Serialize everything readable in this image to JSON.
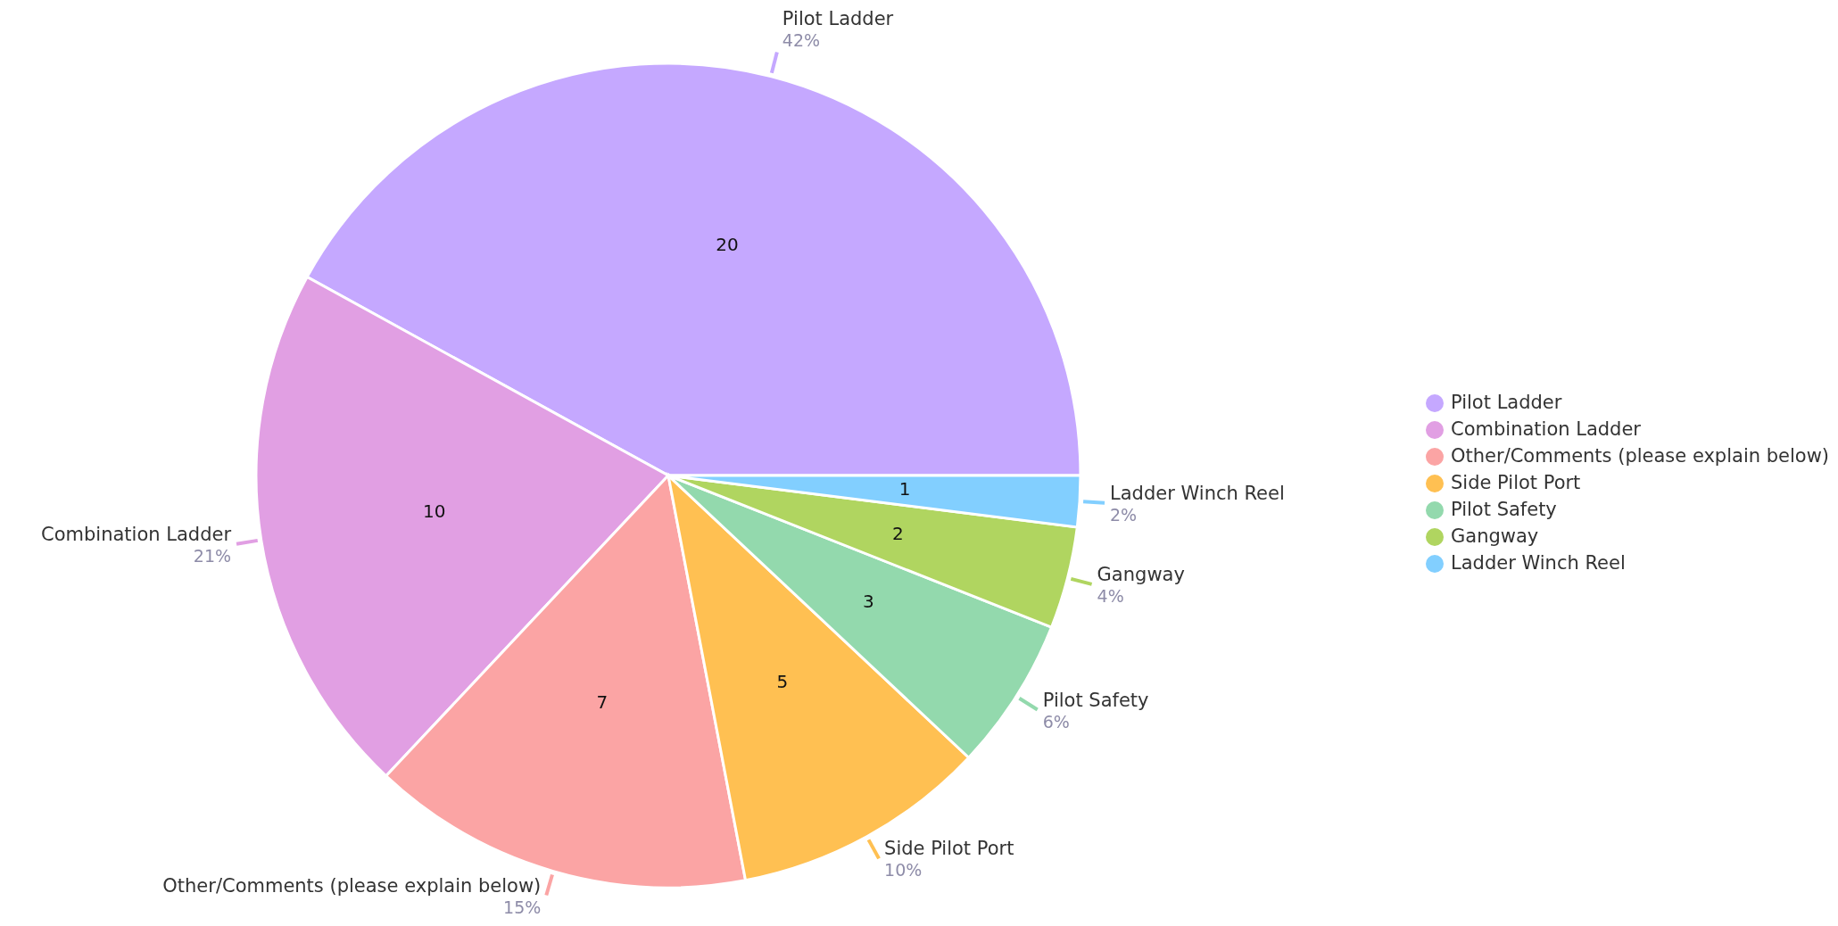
{
  "chart_data": {
    "type": "pie",
    "categories": [
      "Pilot Ladder",
      "Combination Ladder",
      "Other/Comments (please explain below)",
      "Side Pilot Port",
      "Pilot Safety",
      "Gangway",
      "Ladder Winch Reel"
    ],
    "values": [
      42,
      21,
      15,
      10,
      6,
      4,
      2
    ],
    "colors": [
      "#c5a8ff",
      "#e19fe3",
      "#fba4a4",
      "#ffc052",
      "#93d9ad",
      "#b0d560",
      "#82cfff"
    ],
    "value_labels": [
      "42%",
      "21%",
      "15%",
      "10%",
      "6%",
      "4%",
      "2%"
    ],
    "annotations": [
      {
        "text": "20",
        "x": "Pilot Ladder"
      },
      {
        "text": "10",
        "x": "Combination Ladder"
      },
      {
        "text": "7",
        "x": "Other/Comments (please explain below)"
      },
      {
        "text": "5",
        "x": "Side Pilot Port"
      },
      {
        "text": "3",
        "x": "Pilot Safety"
      },
      {
        "text": "2",
        "x": "Gangway"
      },
      {
        "text": "1",
        "x": "Ladder Winch Reel"
      }
    ],
    "legend": "right"
  }
}
